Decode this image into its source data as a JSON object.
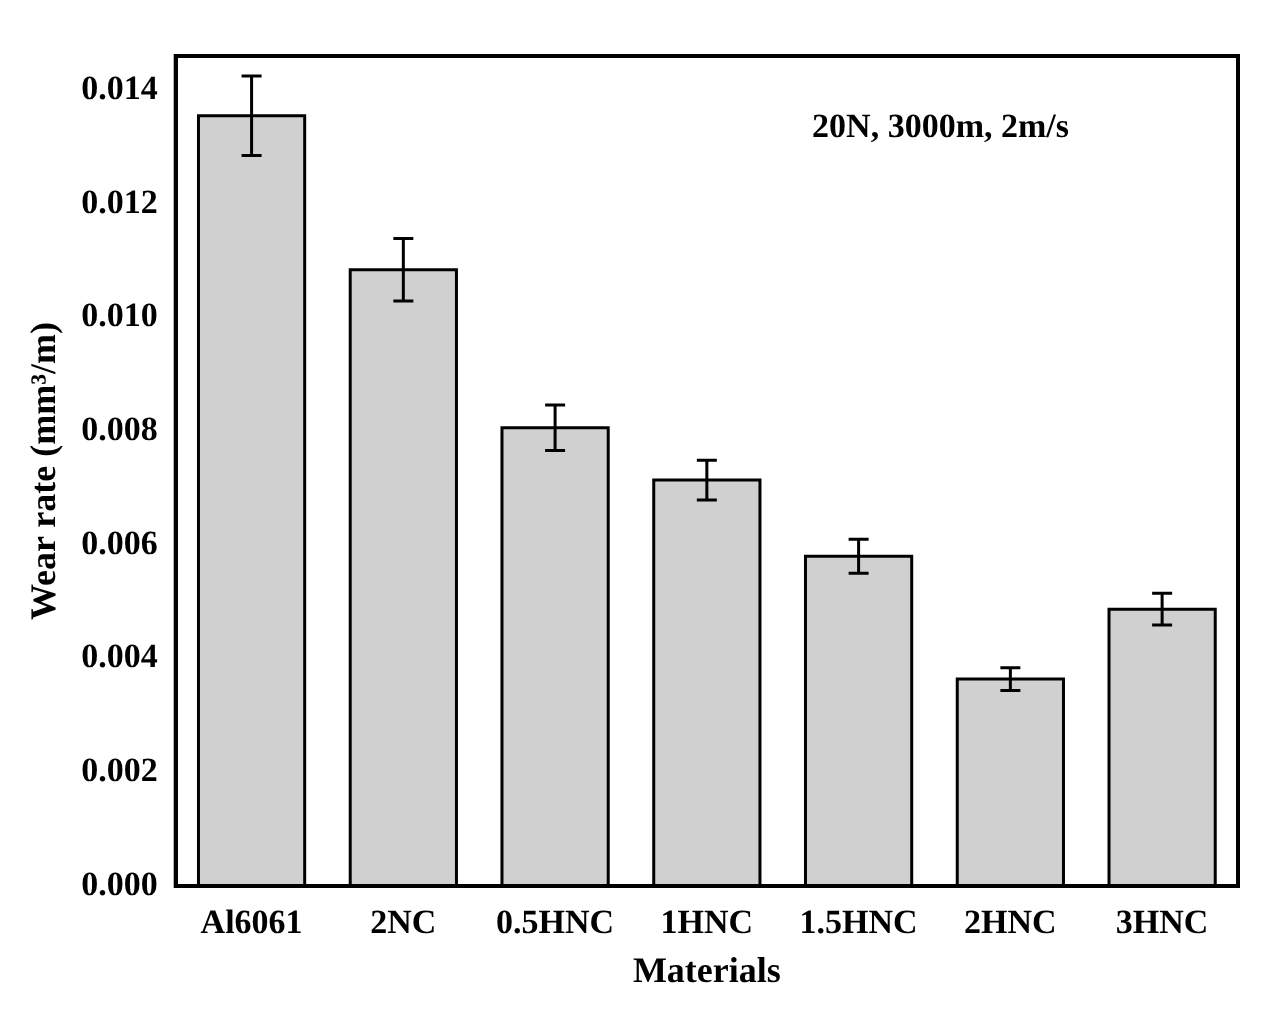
{
  "chart_data": {
    "type": "bar",
    "xlabel": "Materials",
    "ylabel": "Wear rate (mm³/m)",
    "categories": [
      "Al6061",
      "2NC",
      "0.5HNC",
      "1HNC",
      "1.5HNC",
      "2HNC",
      "3HNC"
    ],
    "values": [
      0.01355,
      0.01084,
      0.00806,
      0.00714,
      0.0058,
      0.00364,
      0.00487
    ],
    "errors": [
      0.0007,
      0.00055,
      0.0004,
      0.00035,
      0.0003,
      0.0002,
      0.00028
    ],
    "color": "#d0d0d0",
    "ylim": [
      0,
      0.0146
    ],
    "yticks": [
      {
        "value": 0,
        "label": "0.000"
      },
      {
        "value": 0.002,
        "label": "0.002"
      },
      {
        "value": 0.004,
        "label": "0.004"
      },
      {
        "value": 0.006,
        "label": "0.006"
      },
      {
        "value": 0.008,
        "label": "0.008"
      },
      {
        "value": 0.01,
        "label": "0.010"
      },
      {
        "value": 0.012,
        "label": "0.012"
      },
      {
        "value": 0.014,
        "label": "0.014"
      }
    ],
    "annotations": [
      "20N, 3000m, 2m/s"
    ],
    "grid": false,
    "legend": false
  }
}
